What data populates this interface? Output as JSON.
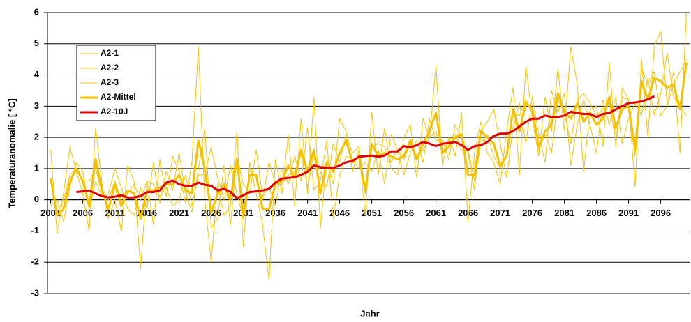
{
  "chart_data": {
    "type": "line",
    "xlabel": "Jahr",
    "ylabel": "Temperaturanomalie [ °C]",
    "xlim": [
      2000.5,
      2100.5
    ],
    "xticks": [
      2001,
      2006,
      2011,
      2016,
      2021,
      2026,
      2031,
      2036,
      2041,
      2046,
      2051,
      2056,
      2061,
      2066,
      2071,
      2076,
      2081,
      2086,
      2091,
      2096
    ],
    "ylim": [
      -3,
      6
    ],
    "yticks": [
      -3,
      -2,
      -1,
      0,
      1,
      2,
      3,
      4,
      5,
      6
    ],
    "grid": true,
    "legend": "upper left",
    "x": [
      2001,
      2002,
      2003,
      2004,
      2005,
      2006,
      2007,
      2008,
      2009,
      2010,
      2011,
      2012,
      2013,
      2014,
      2015,
      2016,
      2017,
      2018,
      2019,
      2020,
      2021,
      2022,
      2023,
      2024,
      2025,
      2026,
      2027,
      2028,
      2029,
      2030,
      2031,
      2032,
      2033,
      2034,
      2035,
      2036,
      2037,
      2038,
      2039,
      2040,
      2041,
      2042,
      2043,
      2044,
      2045,
      2046,
      2047,
      2048,
      2049,
      2050,
      2051,
      2052,
      2053,
      2054,
      2055,
      2056,
      2057,
      2058,
      2059,
      2060,
      2061,
      2062,
      2063,
      2064,
      2065,
      2066,
      2067,
      2068,
      2069,
      2070,
      2071,
      2072,
      2073,
      2074,
      2075,
      2076,
      2077,
      2078,
      2079,
      2080,
      2081,
      2082,
      2083,
      2084,
      2085,
      2086,
      2087,
      2088,
      2089,
      2090,
      2091,
      2092,
      2093,
      2094,
      2095,
      2096,
      2097,
      2098,
      2099,
      2100
    ],
    "series": [
      {
        "name": "A2-1",
        "color": "#f5c400",
        "width": 1,
        "values": [
          1.6,
          -1.1,
          0.2,
          1.7,
          0.9,
          0.2,
          -1.0,
          2.3,
          0.5,
          -0.6,
          0.0,
          -1.0,
          1.1,
          0.6,
          -2.2,
          0.6,
          -0.8,
          1.3,
          0.1,
          1.4,
          0.9,
          -0.1,
          1.2,
          4.9,
          0.0,
          -2.0,
          0.5,
          -0.5,
          -0.2,
          2.2,
          -1.5,
          1.2,
          0.2,
          -0.8,
          -2.6,
          1.3,
          0.2,
          2.1,
          -0.2,
          2.6,
          0.2,
          3.3,
          -0.9,
          1.3,
          0.5,
          2.6,
          2.2,
          0.9,
          1.6,
          -0.5,
          2.8,
          0.8,
          2.3,
          1.0,
          0.8,
          2.0,
          2.4,
          0.7,
          2.6,
          2.0,
          4.3,
          1.1,
          2.0,
          1.4,
          2.8,
          -0.7,
          1.5,
          2.5,
          1.5,
          1.2,
          0.5,
          2.2,
          3.6,
          0.8,
          4.3,
          2.6,
          1.4,
          3.3,
          2.2,
          4.2,
          2.2,
          4.9,
          3.7,
          0.9,
          2.9,
          3.0,
          1.7,
          4.4,
          1.7,
          3.6,
          3.2,
          0.4,
          4.5,
          2.0,
          4.9,
          5.4,
          3.1,
          4.1,
          1.5,
          6.0
        ]
      },
      {
        "name": "A2-2",
        "color": "#f5c400",
        "width": 1,
        "values": [
          -0.2,
          0.0,
          -0.7,
          0.4,
          1.2,
          0.9,
          -0.3,
          0.6,
          0.1,
          0.2,
          1.0,
          0.4,
          -0.3,
          -0.5,
          0.4,
          -0.3,
          1.2,
          -0.1,
          0.9,
          0.3,
          1.5,
          0.2,
          -0.4,
          1.0,
          2.3,
          -0.9,
          -0.6,
          1.1,
          -0.8,
          1.4,
          0.5,
          0.2,
          1.6,
          0.1,
          0.4,
          -0.2,
          1.0,
          0.5,
          1.4,
          0.6,
          2.3,
          0.3,
          0.6,
          1.9,
          -0.6,
          0.8,
          1.4,
          1.3,
          1.0,
          1.2,
          0.9,
          1.6,
          0.5,
          2.1,
          1.6,
          0.8,
          1.5,
          1.9,
          1.2,
          2.6,
          1.9,
          1.9,
          1.3,
          2.4,
          2.0,
          1.5,
          0.3,
          2.2,
          2.5,
          2.9,
          1.8,
          0.7,
          2.3,
          3.1,
          1.8,
          3.3,
          2.1,
          1.2,
          3.5,
          2.8,
          3.4,
          1.1,
          2.4,
          3.2,
          2.4,
          1.5,
          3.2,
          2.4,
          3.3,
          1.8,
          2.6,
          3.1,
          2.7,
          3.9,
          2.7,
          3.4,
          4.7,
          3.3,
          3.0,
          2.7
        ]
      },
      {
        "name": "A2-3",
        "color": "#f5c400",
        "width": 1,
        "values": [
          0.6,
          -0.4,
          0.0,
          0.8,
          1.0,
          0.6,
          0.6,
          1.0,
          0.2,
          0.0,
          0.6,
          0.0,
          0.2,
          0.5,
          0.0,
          0.6,
          0.5,
          0.1,
          0.4,
          -0.2,
          0.0,
          0.8,
          -0.2,
          0.8,
          0.8,
          1.7,
          0.7,
          0.0,
          1.1,
          0.2,
          -0.6,
          1.0,
          0.7,
          0.0,
          1.2,
          0.5,
          0.5,
          0.8,
          0.9,
          1.5,
          0.4,
          1.5,
          0.9,
          0.4,
          1.8,
          1.2,
          2.1,
          1.5,
          1.7,
          0.2,
          1.7,
          1.8,
          1.7,
          1.2,
          1.6,
          1.3,
          1.8,
          1.4,
          1.6,
          2.0,
          2.2,
          1.5,
          1.9,
          2.1,
          1.6,
          1.6,
          0.6,
          1.8,
          2.1,
          1.4,
          1.0,
          1.4,
          2.8,
          2.7,
          3.2,
          2.8,
          1.6,
          2.1,
          1.5,
          3.2,
          2.8,
          1.8,
          3.2,
          3.4,
          3.1,
          2.7,
          2.9,
          3.1,
          1.9,
          3.3,
          3.2,
          1.4,
          4.2,
          3.7,
          4.1,
          2.7,
          3.0,
          3.7,
          4.1,
          4.5
        ]
      },
      {
        "name": "A2-Mittel",
        "color": "#f5c000",
        "width": 3,
        "values": [
          0.7,
          -0.5,
          -0.3,
          0.6,
          1.0,
          0.6,
          -0.2,
          1.3,
          0.3,
          -0.3,
          0.5,
          -0.2,
          0.3,
          0.2,
          -0.6,
          0.3,
          0.3,
          0.4,
          0.5,
          0.5,
          0.8,
          0.3,
          0.2,
          1.9,
          1.0,
          -0.4,
          0.2,
          0.5,
          0.0,
          1.3,
          -0.5,
          0.8,
          0.8,
          -0.3,
          -0.3,
          0.5,
          0.6,
          1.1,
          0.7,
          1.6,
          0.9,
          1.6,
          0.2,
          1.2,
          0.9,
          1.5,
          1.9,
          1.2,
          1.4,
          0.3,
          1.8,
          1.4,
          1.5,
          1.4,
          1.3,
          1.4,
          1.9,
          1.3,
          1.8,
          2.2,
          2.8,
          1.5,
          1.7,
          2.0,
          2.1,
          0.8,
          0.8,
          2.2,
          2.0,
          1.8,
          1.1,
          1.4,
          2.9,
          2.2,
          3.1,
          2.9,
          1.7,
          2.2,
          2.4,
          3.4,
          2.8,
          2.6,
          3.1,
          2.5,
          2.8,
          2.4,
          2.6,
          3.3,
          2.3,
          2.9,
          3.0,
          1.6,
          3.8,
          3.2,
          3.9,
          3.8,
          3.6,
          3.7,
          2.9,
          4.4
        ]
      },
      {
        "name": "A2-10J",
        "color": "#e00000",
        "width": 3,
        "values": [
          null,
          null,
          null,
          null,
          0.25,
          0.27,
          0.3,
          0.2,
          0.12,
          0.08,
          0.1,
          0.15,
          0.07,
          0.08,
          0.12,
          0.25,
          0.25,
          0.3,
          0.55,
          0.62,
          0.5,
          0.45,
          0.45,
          0.55,
          0.48,
          0.45,
          0.3,
          0.35,
          0.25,
          0.05,
          0.15,
          0.25,
          0.27,
          0.3,
          0.35,
          0.55,
          0.68,
          0.7,
          0.72,
          0.8,
          0.9,
          1.1,
          1.05,
          1.03,
          1.02,
          1.1,
          1.2,
          1.25,
          1.38,
          1.4,
          1.42,
          1.38,
          1.42,
          1.55,
          1.55,
          1.72,
          1.68,
          1.75,
          1.85,
          1.8,
          1.72,
          1.8,
          1.82,
          1.85,
          1.75,
          1.6,
          1.72,
          1.75,
          1.85,
          2.05,
          2.12,
          2.12,
          2.2,
          2.35,
          2.5,
          2.6,
          2.6,
          2.7,
          2.65,
          2.65,
          2.7,
          2.82,
          2.78,
          2.75,
          2.75,
          2.65,
          2.75,
          2.78,
          2.9,
          3.0,
          3.1,
          3.12,
          3.15,
          3.22,
          3.32,
          null,
          null,
          null,
          null,
          null
        ]
      }
    ]
  }
}
